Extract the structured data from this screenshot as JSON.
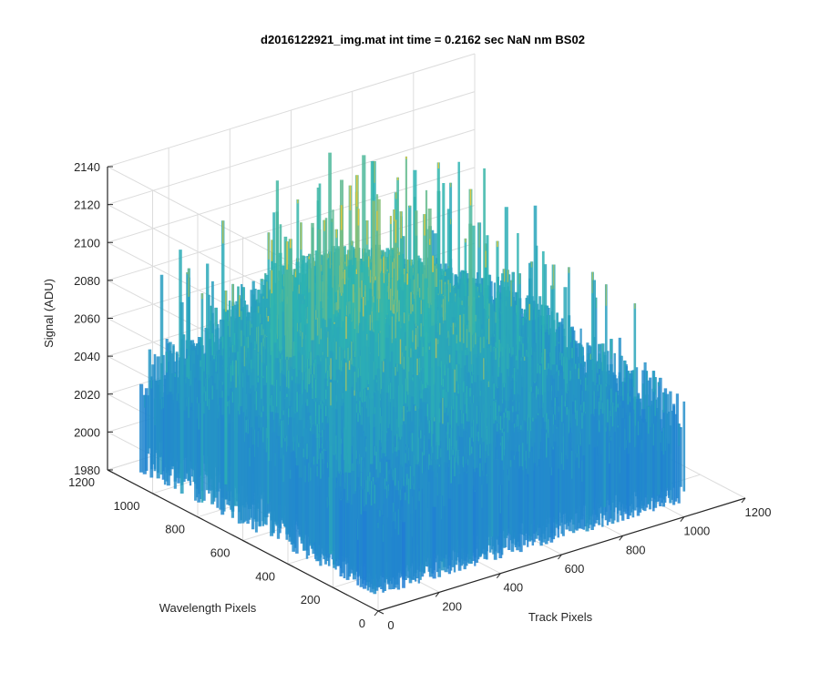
{
  "chart_data": {
    "type": "surface",
    "title": "d2016122921_img.mat int time = 0.2162 sec  NaN nm BS02",
    "xlabel": "Track Pixels",
    "ylabel": "Wavelength Pixels",
    "zlabel": "Signal (ADU)",
    "xlim": [
      0,
      1200
    ],
    "ylim": [
      0,
      1200
    ],
    "zlim": [
      1980,
      2140
    ],
    "x_ticks": [
      "0",
      "200",
      "400",
      "600",
      "800",
      "1000",
      "1200"
    ],
    "y_ticks": [
      "0",
      "200",
      "400",
      "600",
      "800",
      "1000",
      "1200"
    ],
    "z_ticks": [
      "1980",
      "2000",
      "2020",
      "2040",
      "2060",
      "2080",
      "2100",
      "2120",
      "2140"
    ],
    "grid": true,
    "colormap": "parula",
    "data_extent": {
      "x": [
        0,
        1000
      ],
      "y": [
        0,
        1050
      ]
    },
    "signal_baseline": 2015,
    "signal_peak_approx": 2135,
    "surface_summary": "Noisy surface between ~1990 and ~2135 ADU with ridge of higher signal (~2080-2120) near center and Track ~500"
  },
  "colors": {
    "axis": "#262626",
    "grid": "#dcdcdc",
    "low": "#1f7bd6",
    "mid": "#2db5b0",
    "high": "#e8c83a"
  }
}
